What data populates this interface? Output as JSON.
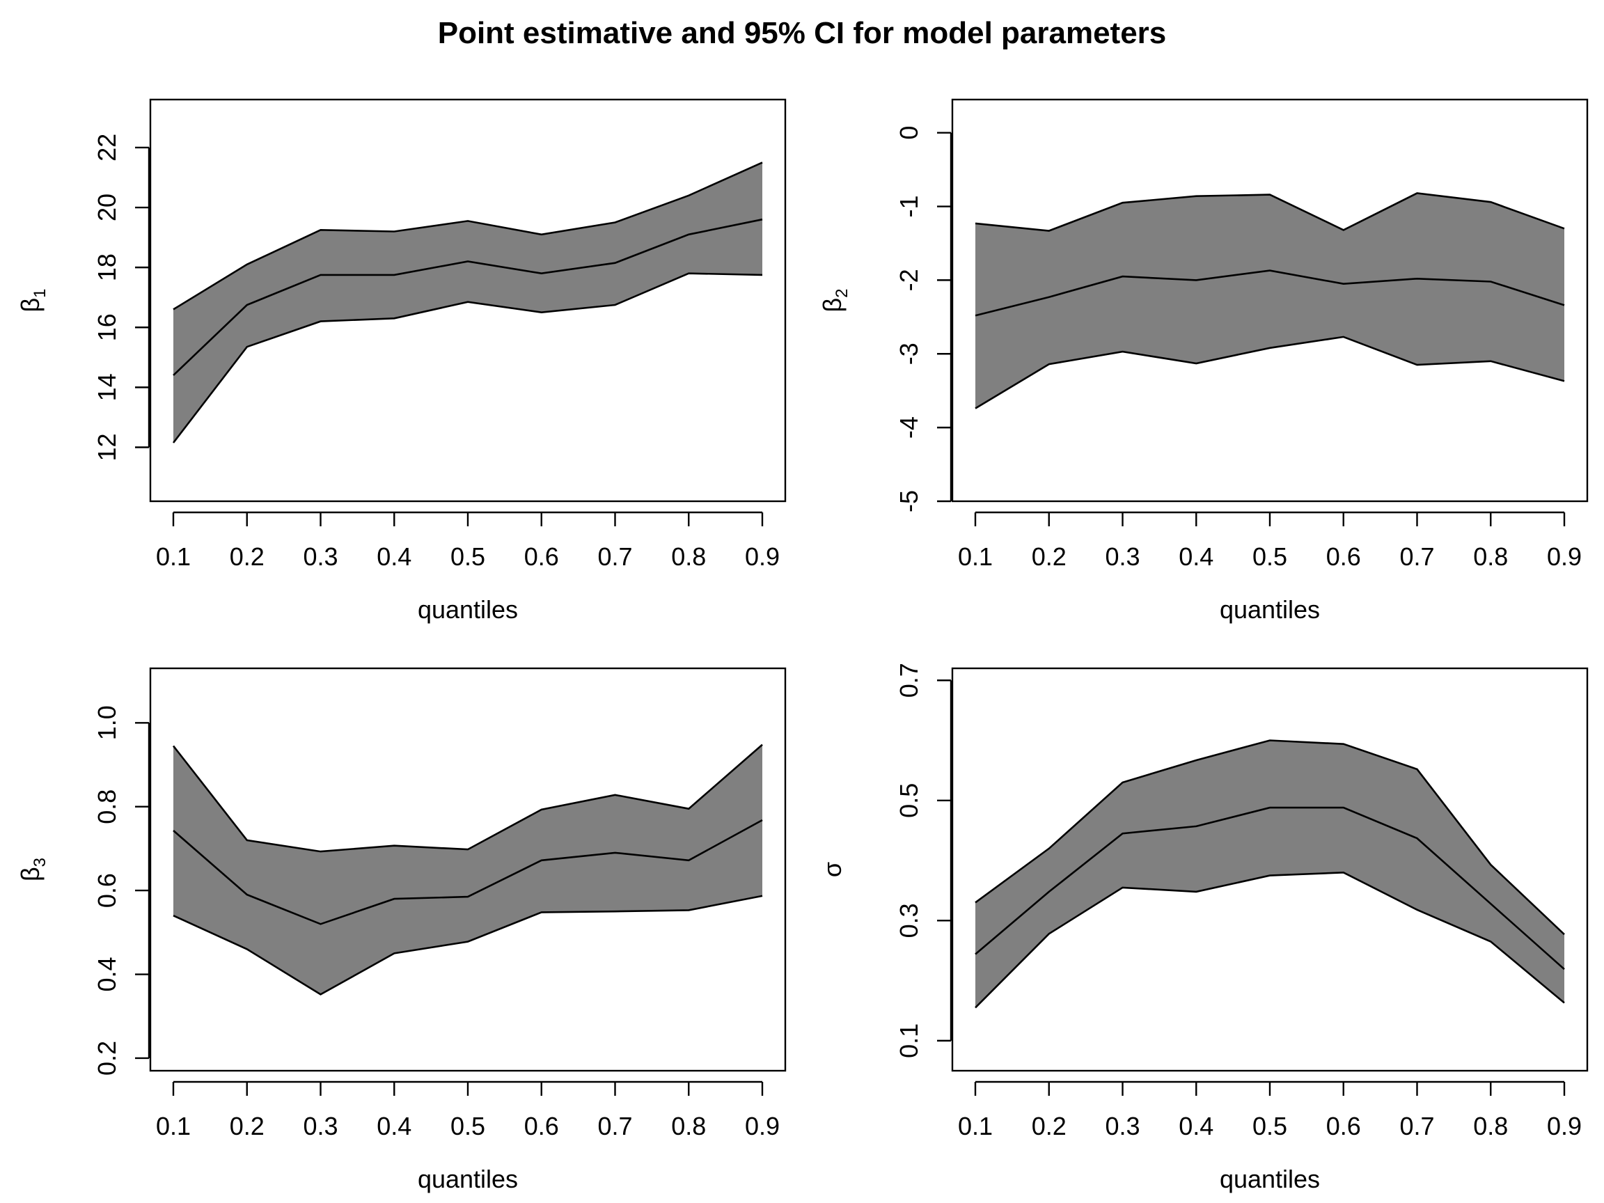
{
  "title": "Point estimative and 95% CI for model parameters",
  "chart_data": [
    {
      "type": "area",
      "panel": "top-left",
      "xlabel": "quantiles",
      "ylabel": "β",
      "ylabel_sub": "1",
      "x": [
        0.1,
        0.2,
        0.3,
        0.4,
        0.5,
        0.6,
        0.7,
        0.8,
        0.9
      ],
      "x_tick_labels": [
        "0.1",
        "0.2",
        "0.3",
        "0.4",
        "0.5",
        "0.6",
        "0.7",
        "0.8",
        "0.9"
      ],
      "y_ticks": [
        12,
        14,
        16,
        18,
        20,
        22
      ],
      "y_tick_labels": [
        "12",
        "14",
        "16",
        "18",
        "20",
        "22"
      ],
      "ylim": [
        10.2,
        23.6
      ],
      "band_color": "#808080",
      "series": [
        {
          "role": "upper",
          "values": [
            16.6,
            18.1,
            19.25,
            19.2,
            19.55,
            19.1,
            19.5,
            20.4,
            21.5
          ]
        },
        {
          "role": "estimate",
          "values": [
            14.4,
            16.75,
            17.75,
            17.75,
            18.2,
            17.8,
            18.15,
            19.1,
            19.6
          ]
        },
        {
          "role": "lower",
          "values": [
            12.15,
            15.35,
            16.2,
            16.3,
            16.85,
            16.5,
            16.75,
            17.8,
            17.75
          ]
        }
      ]
    },
    {
      "type": "area",
      "panel": "top-right",
      "xlabel": "quantiles",
      "ylabel": "β",
      "ylabel_sub": "2",
      "x": [
        0.1,
        0.2,
        0.3,
        0.4,
        0.5,
        0.6,
        0.7,
        0.8,
        0.9
      ],
      "x_tick_labels": [
        "0.1",
        "0.2",
        "0.3",
        "0.4",
        "0.5",
        "0.6",
        "0.7",
        "0.8",
        "0.9"
      ],
      "y_ticks": [
        -5,
        -4,
        -3,
        -2,
        -1,
        0
      ],
      "y_tick_labels": [
        "-5",
        "-4",
        "-3",
        "-2",
        "-1",
        "0"
      ],
      "ylim": [
        -5.0,
        0.45
      ],
      "band_color": "#808080",
      "series": [
        {
          "role": "upper",
          "values": [
            -1.23,
            -1.33,
            -0.95,
            -0.86,
            -0.84,
            -1.32,
            -0.82,
            -0.94,
            -1.3
          ]
        },
        {
          "role": "estimate",
          "values": [
            -2.48,
            -2.23,
            -1.95,
            -2.0,
            -1.87,
            -2.05,
            -1.98,
            -2.02,
            -2.34
          ]
        },
        {
          "role": "lower",
          "values": [
            -3.74,
            -3.14,
            -2.97,
            -3.13,
            -2.92,
            -2.77,
            -3.15,
            -3.1,
            -3.37
          ]
        }
      ]
    },
    {
      "type": "area",
      "panel": "bottom-left",
      "xlabel": "quantiles",
      "ylabel": "β",
      "ylabel_sub": "3",
      "x": [
        0.1,
        0.2,
        0.3,
        0.4,
        0.5,
        0.6,
        0.7,
        0.8,
        0.9
      ],
      "x_tick_labels": [
        "0.1",
        "0.2",
        "0.3",
        "0.4",
        "0.5",
        "0.6",
        "0.7",
        "0.8",
        "0.9"
      ],
      "y_ticks": [
        0.2,
        0.4,
        0.6,
        0.8,
        1.0
      ],
      "y_tick_labels": [
        "0.2",
        "0.4",
        "0.6",
        "0.8",
        "1.0"
      ],
      "ylim": [
        0.17,
        1.13
      ],
      "band_color": "#808080",
      "series": [
        {
          "role": "upper",
          "values": [
            0.945,
            0.72,
            0.693,
            0.707,
            0.698,
            0.793,
            0.828,
            0.795,
            0.948
          ]
        },
        {
          "role": "estimate",
          "values": [
            0.743,
            0.59,
            0.52,
            0.58,
            0.585,
            0.672,
            0.69,
            0.672,
            0.768
          ]
        },
        {
          "role": "lower",
          "values": [
            0.54,
            0.46,
            0.352,
            0.45,
            0.478,
            0.548,
            0.55,
            0.553,
            0.587
          ]
        }
      ]
    },
    {
      "type": "area",
      "panel": "bottom-right",
      "xlabel": "quantiles",
      "ylabel": "σ",
      "ylabel_sub": "",
      "x": [
        0.1,
        0.2,
        0.3,
        0.4,
        0.5,
        0.6,
        0.7,
        0.8,
        0.9
      ],
      "x_tick_labels": [
        "0.1",
        "0.2",
        "0.3",
        "0.4",
        "0.5",
        "0.6",
        "0.7",
        "0.8",
        "0.9"
      ],
      "y_ticks": [
        0.1,
        0.3,
        0.5,
        0.7
      ],
      "y_tick_labels": [
        "0.1",
        "0.3",
        "0.5",
        "0.7"
      ],
      "ylim": [
        0.05,
        0.72
      ],
      "band_color": "#808080",
      "series": [
        {
          "role": "upper",
          "values": [
            0.33,
            0.42,
            0.53,
            0.567,
            0.6,
            0.594,
            0.552,
            0.393,
            0.277
          ]
        },
        {
          "role": "estimate",
          "values": [
            0.244,
            0.348,
            0.445,
            0.457,
            0.488,
            0.488,
            0.437,
            0.328,
            0.219
          ]
        },
        {
          "role": "lower",
          "values": [
            0.155,
            0.278,
            0.355,
            0.348,
            0.375,
            0.38,
            0.318,
            0.265,
            0.163
          ]
        }
      ]
    }
  ]
}
